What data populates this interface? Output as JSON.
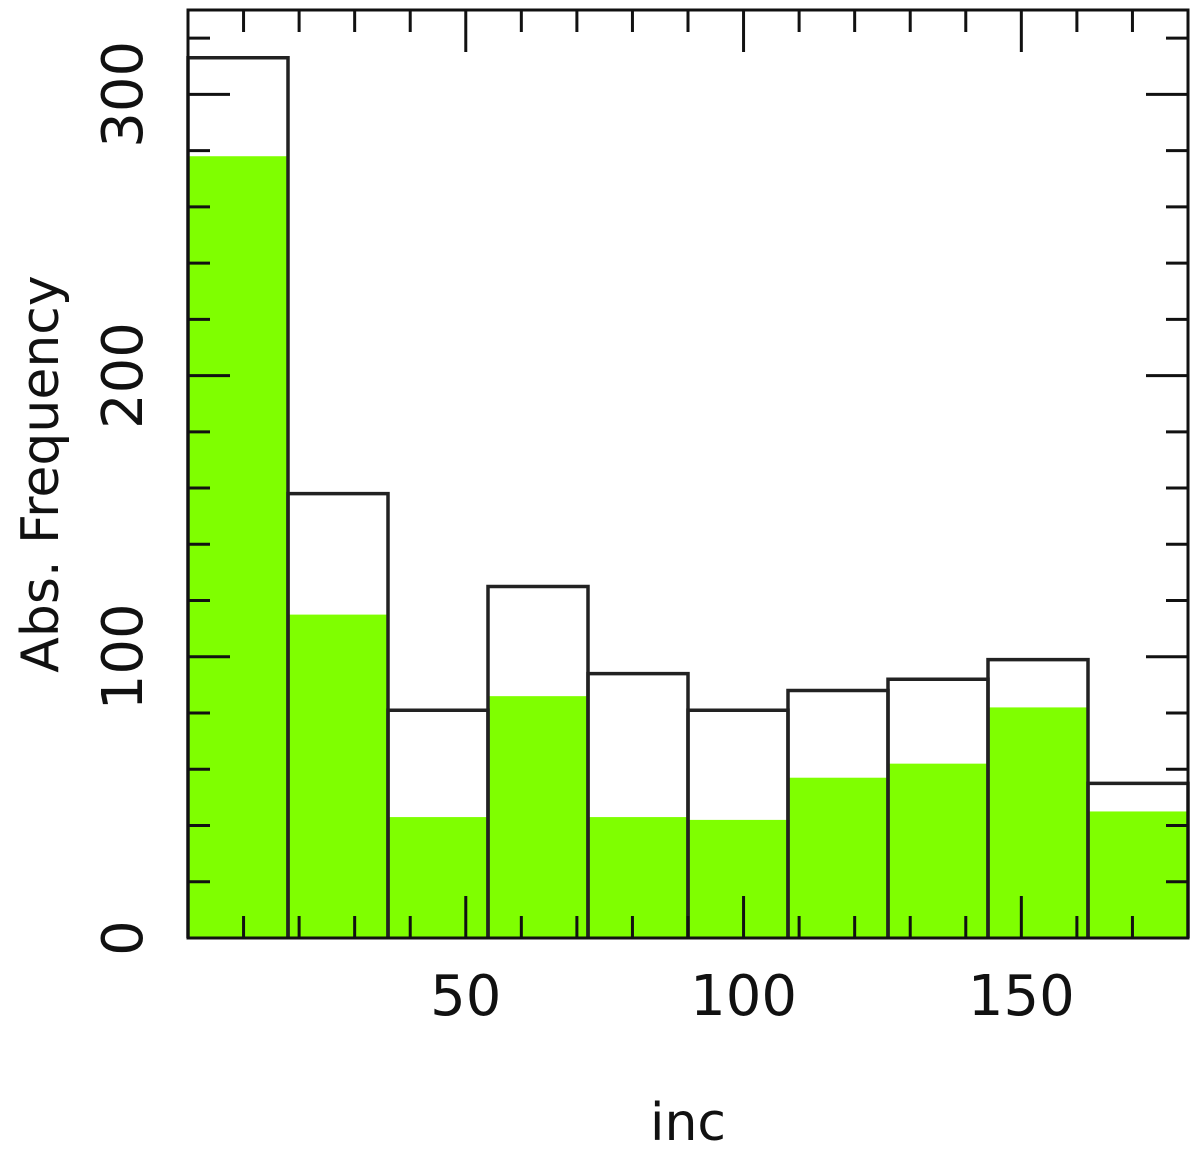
{
  "chart_data": {
    "type": "bar",
    "xlabel": "inc",
    "ylabel": "Abs.  Frequency",
    "xlim": [
      0,
      180
    ],
    "ylim": [
      0,
      330
    ],
    "x_ticks": [
      50,
      100,
      150
    ],
    "y_ticks": [
      0,
      100,
      200,
      300
    ],
    "bin_width": 18,
    "bins": [
      [
        0,
        18
      ],
      [
        18,
        36
      ],
      [
        36,
        54
      ],
      [
        54,
        72
      ],
      [
        72,
        90
      ],
      [
        90,
        108
      ],
      [
        108,
        126
      ],
      [
        126,
        144
      ],
      [
        144,
        162
      ],
      [
        162,
        180
      ]
    ],
    "series": [
      {
        "style": "outline",
        "color": "#222222",
        "values": [
          313,
          158,
          81,
          125,
          94,
          81,
          88,
          92,
          99,
          55
        ]
      },
      {
        "style": "filled",
        "color": "#7fff00",
        "values": [
          278,
          115,
          43,
          86,
          43,
          42,
          57,
          62,
          82,
          45
        ]
      }
    ],
    "grid": false,
    "legend": "none"
  }
}
